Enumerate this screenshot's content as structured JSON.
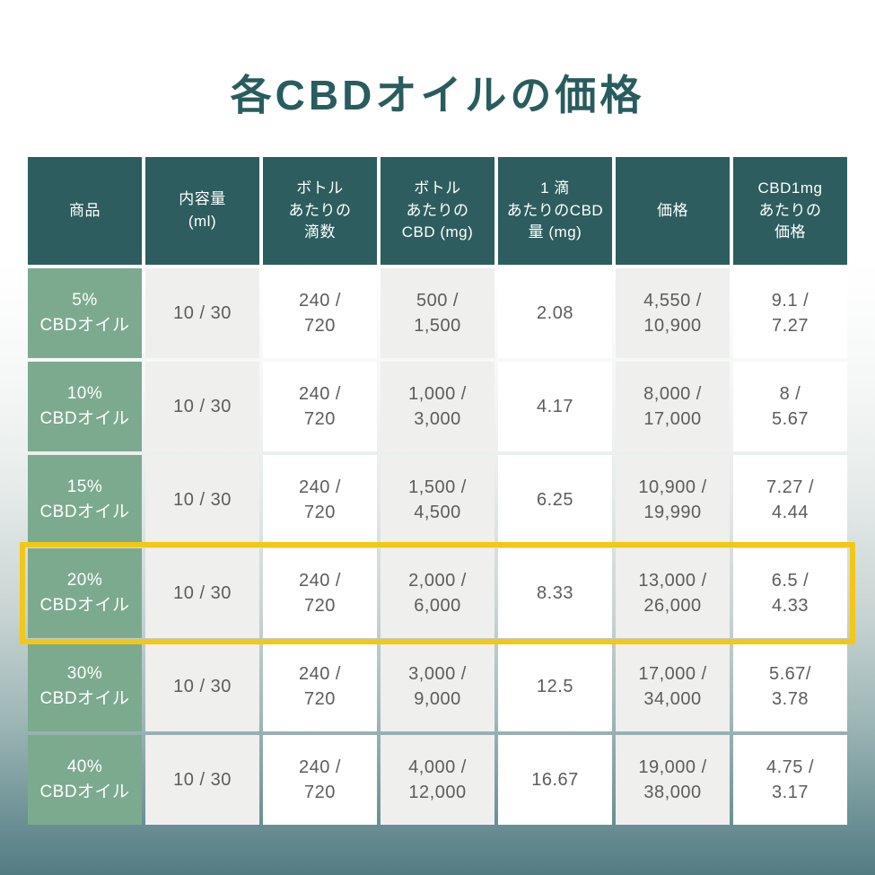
{
  "page": {
    "title": "各CBDオイルの価格"
  },
  "colors": {
    "title_text": "#295c5e",
    "header_bg": "#2d5d5f",
    "header_text": "#ffffff",
    "product_bg": "#7caa8e",
    "product_text": "#ffffff",
    "cell_bg_gray": "#efefee",
    "cell_bg_white": "#ffffff",
    "cell_text": "#5c5c5c",
    "highlight_border": "#f3c716",
    "background_bottom": "#527c83"
  },
  "table": {
    "headers": [
      "商品",
      "内容量\n(ml)",
      "ボトル\nあたりの\n滴数",
      "ボトル\nあたりの\nCBD (mg)",
      "1 滴\nあたりのCBD\n量 (mg)",
      "価格",
      "CBD1mg\nあたりの\n価格"
    ],
    "rows": [
      {
        "cells": [
          "5%\nCBDオイル",
          "10 / 30",
          "240 /\n720",
          "500 /\n1,500",
          "2.08",
          "4,550 /\n10,900",
          "9.1 /\n7.27"
        ],
        "highlighted": false
      },
      {
        "cells": [
          "10%\nCBDオイル",
          "10 / 30",
          "240 /\n720",
          "1,000 /\n3,000",
          "4.17",
          "8,000 /\n17,000",
          "8 /\n5.67"
        ],
        "highlighted": false
      },
      {
        "cells": [
          "15%\nCBDオイル",
          "10 / 30",
          "240 /\n720",
          "1,500 /\n4,500",
          "6.25",
          "10,900 /\n19,990",
          "7.27 /\n4.44"
        ],
        "highlighted": false
      },
      {
        "cells": [
          "20%\nCBDオイル",
          "10 / 30",
          "240 /\n720",
          "2,000 /\n6,000",
          "8.33",
          "13,000 /\n26,000",
          "6.5 /\n4.33"
        ],
        "highlighted": true
      },
      {
        "cells": [
          "30%\nCBDオイル",
          "10 / 30",
          "240 /\n720",
          "3,000 /\n9,000",
          "12.5",
          "17,000 /\n34,000",
          "5.67/\n3.78"
        ],
        "highlighted": false
      },
      {
        "cells": [
          "40%\nCBDオイル",
          "10 / 30",
          "240 /\n720",
          "4,000 /\n12,000",
          "16.67",
          "19,000 /\n38,000",
          "4.75 /\n3.17"
        ],
        "highlighted": false
      }
    ]
  },
  "chart_data": {
    "type": "table",
    "title": "各CBDオイルの価格",
    "columns": [
      "商品",
      "内容量 (ml)",
      "ボトルあたりの滴数",
      "ボトルあたりのCBD (mg)",
      "1 滴あたりのCBD量 (mg)",
      "価格",
      "CBD1mgあたりの価格"
    ],
    "rows": [
      [
        "5% CBDオイル",
        "10 / 30",
        "240 / 720",
        "500 / 1,500",
        "2.08",
        "4,550 / 10,900",
        "9.1 / 7.27"
      ],
      [
        "10% CBDオイル",
        "10 / 30",
        "240 / 720",
        "1,000 / 3,000",
        "4.17",
        "8,000 / 17,000",
        "8 / 5.67"
      ],
      [
        "15% CBDオイル",
        "10 / 30",
        "240 / 720",
        "1,500 / 4,500",
        "6.25",
        "10,900 / 19,990",
        "7.27 / 4.44"
      ],
      [
        "20% CBDオイル",
        "10 / 30",
        "240 / 720",
        "2,000 / 6,000",
        "8.33",
        "13,000 / 26,000",
        "6.5 / 4.33"
      ],
      [
        "30% CBDオイル",
        "10 / 30",
        "240 / 720",
        "3,000 / 9,000",
        "12.5",
        "17,000 / 34,000",
        "5.67/ 3.78"
      ],
      [
        "40% CBDオイル",
        "10 / 30",
        "240 / 720",
        "4,000 / 12,000",
        "16.67",
        "19,000 / 38,000",
        "4.75 / 3.17"
      ]
    ],
    "highlighted_row": "20% CBDオイル",
    "layout": {
      "header_position": "top",
      "grid": true
    }
  }
}
